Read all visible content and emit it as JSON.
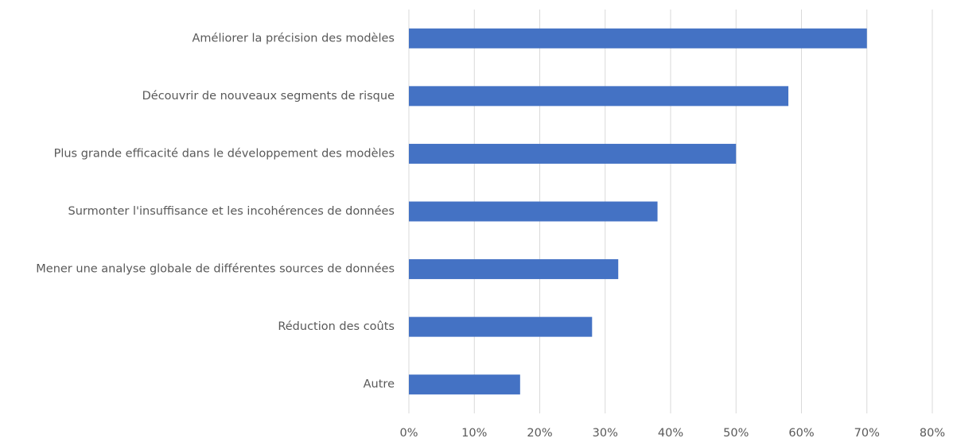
{
  "chart_data": {
    "type": "bar",
    "orientation": "horizontal",
    "categories": [
      "Améliorer la précision des modèles",
      "Découvrir de nouveaux segments de risque",
      "Plus grande efficacité dans le développement des modèles",
      "Surmonter l'insuffisance et les incohérences de données",
      "Mener une analyse globale de différentes sources de données",
      "Réduction des coûts",
      "Autre"
    ],
    "values": [
      70,
      58,
      50,
      38,
      32,
      28,
      17
    ],
    "color": "#4472c4",
    "xlim": [
      0,
      80
    ],
    "xticks": [
      {
        "value": 0,
        "label": "0%"
      },
      {
        "value": 10,
        "label": "10%"
      },
      {
        "value": 20,
        "label": "20%"
      },
      {
        "value": 30,
        "label": "30%"
      },
      {
        "value": 40,
        "label": "40%"
      },
      {
        "value": 50,
        "label": "50%"
      },
      {
        "value": 60,
        "label": "60%"
      },
      {
        "value": 70,
        "label": "70%"
      },
      {
        "value": 80,
        "label": "80%"
      }
    ],
    "grid": true
  }
}
